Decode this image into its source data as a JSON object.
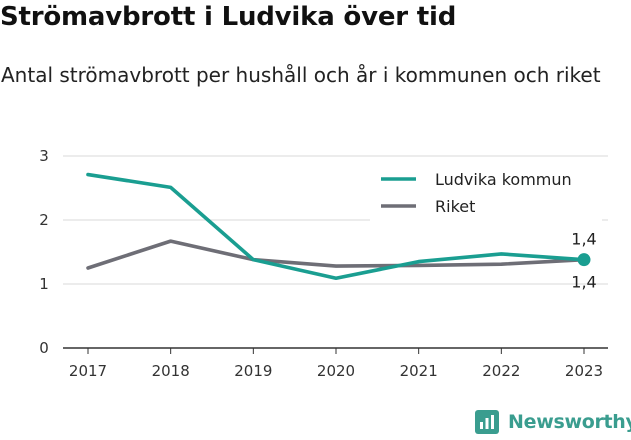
{
  "header": {
    "title": "Strömavbrott i Ludvika över tid",
    "subtitle": "Antal strömavbrott per hushåll och år i kommunen och riket"
  },
  "brand": {
    "name": "Newsworthy",
    "icon": "newsworthy-logo-icon",
    "color": "#3a9d8f"
  },
  "chart_data": {
    "type": "line",
    "title": "Strömavbrott i Ludvika över tid",
    "subtitle": "Antal strömavbrott per hushåll och år i kommunen och riket",
    "xlabel": "",
    "ylabel": "",
    "x": [
      "2017",
      "2018",
      "2019",
      "2020",
      "2021",
      "2022",
      "2023"
    ],
    "ylim": [
      0,
      3
    ],
    "yticks": [
      "0",
      "1",
      "2",
      "3"
    ],
    "grid": true,
    "legend_position": "top-right",
    "series": [
      {
        "name": "Ludvika kommun",
        "color": "#1a9e91",
        "values": [
          2.71,
          2.51,
          1.38,
          1.09,
          1.35,
          1.47,
          1.38
        ],
        "end_label": "1,4"
      },
      {
        "name": "Riket",
        "color": "#6e6e76",
        "values": [
          1.25,
          1.67,
          1.38,
          1.28,
          1.29,
          1.31,
          1.38
        ],
        "end_label": "1,4"
      }
    ]
  }
}
